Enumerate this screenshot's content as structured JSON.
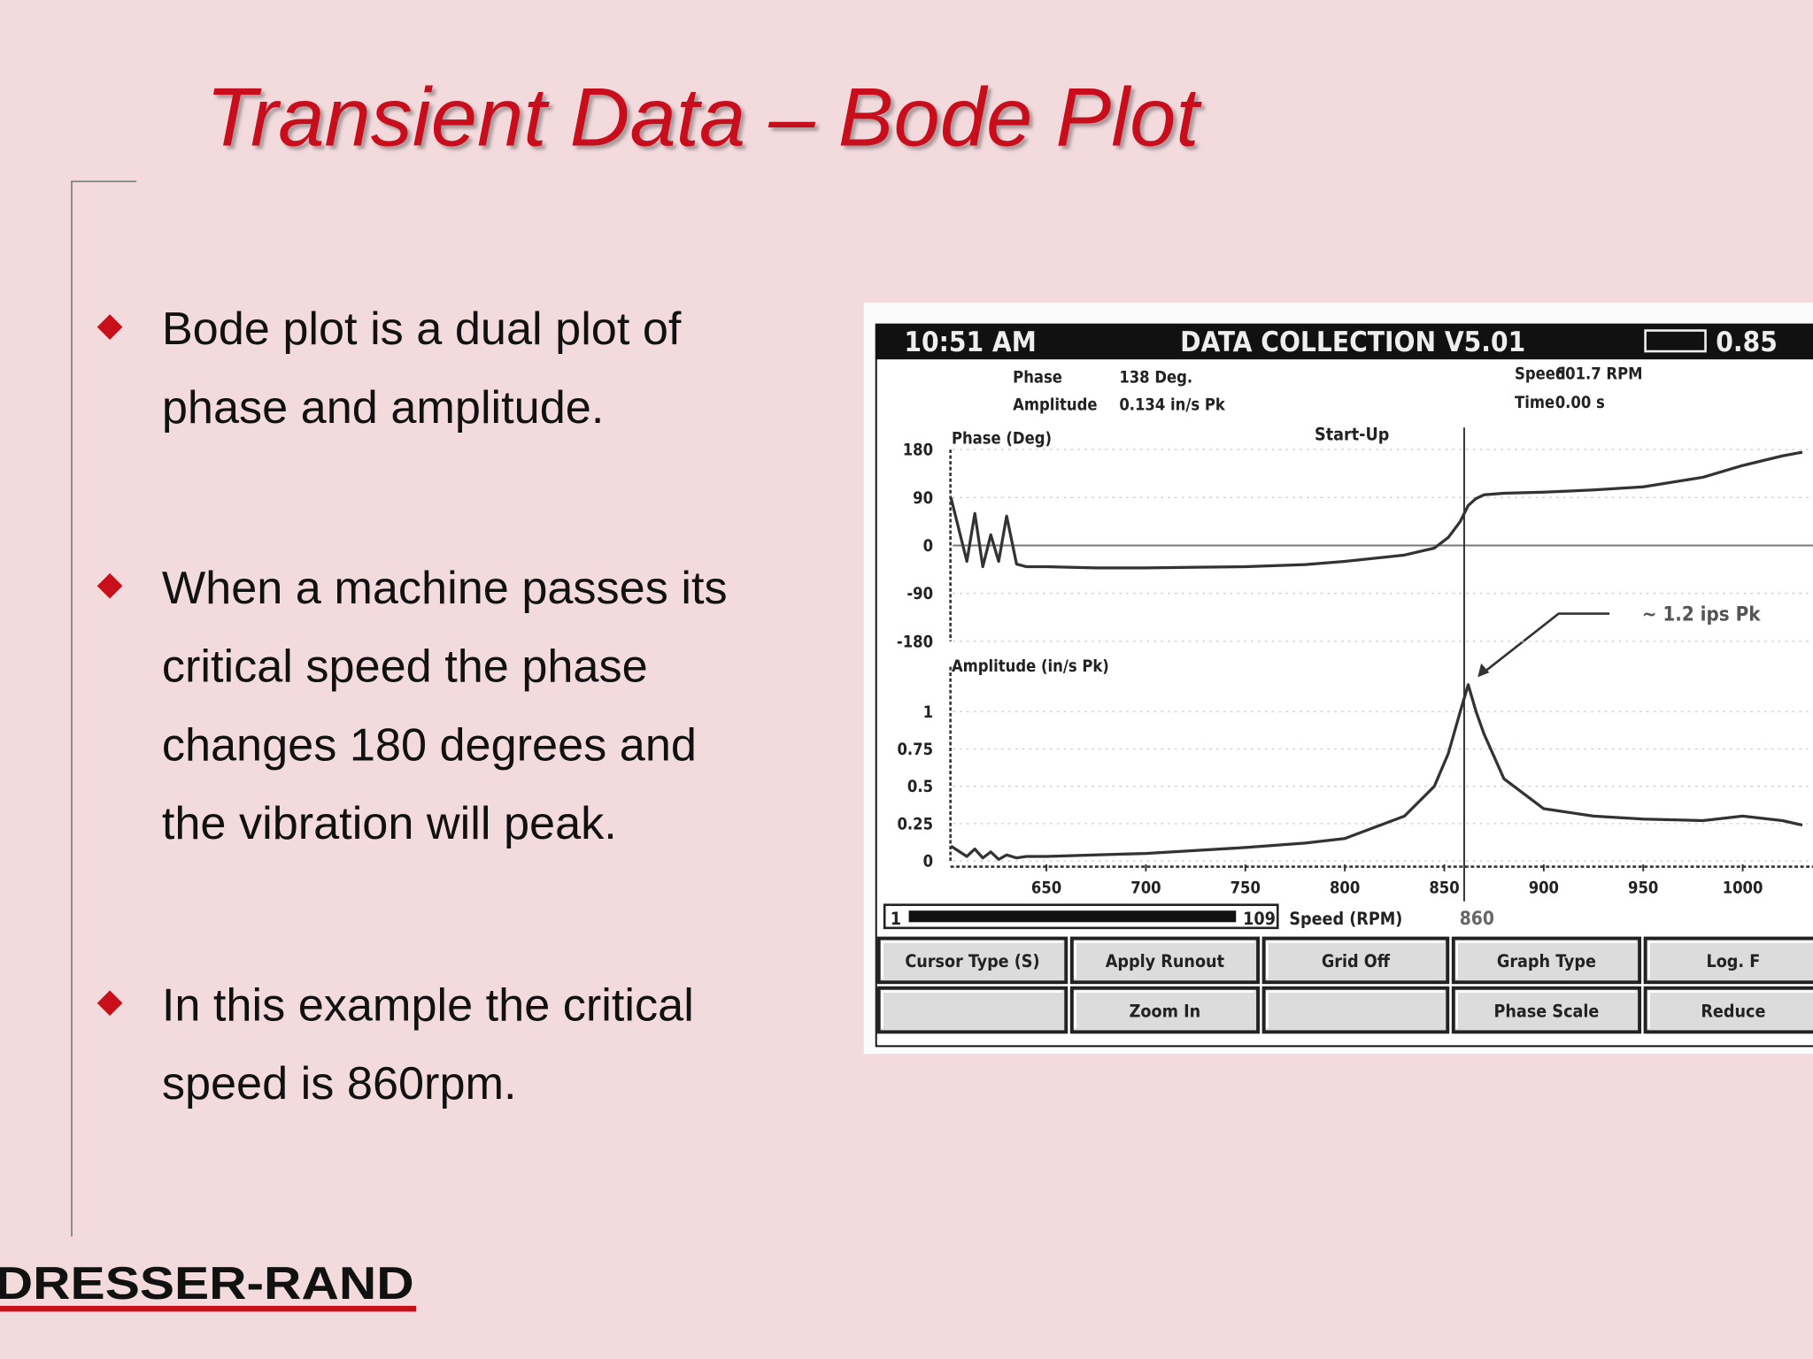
{
  "title": "Transient Data – Bode Plot",
  "bullets": [
    [
      "Bode plot is a dual plot of",
      "phase and amplitude."
    ],
    [
      "When a machine passes its",
      "critical speed the phase",
      "changes 180 degrees and",
      "the vibration will peak."
    ],
    [
      "In this example the critical",
      "speed is 860rpm."
    ]
  ],
  "logo": "DRESSER-RAND",
  "screen": {
    "time": "10:51 AM",
    "header": "DATA COLLECTION V5.01",
    "battery": "0.85",
    "readouts": [
      {
        "label": "Phase",
        "value": "138 Deg."
      },
      {
        "label": "Amplitude",
        "value": "0.134 in/s Pk"
      },
      {
        "label": "Speed",
        "value": "601.7 RPM"
      },
      {
        "label": "Time",
        "value": "0.00 s"
      }
    ],
    "mode": "Start-Up",
    "annotation": "~ 1.2 ips Pk",
    "slider_start": "1",
    "slider_end": "109",
    "plot": {
      "x_label": "Speed (RPM)",
      "xlim": [
        600,
        1040
      ],
      "xticks": [
        650,
        700,
        750,
        800,
        850,
        900,
        950,
        1000
      ],
      "cursor": 860,
      "x": [
        602,
        610,
        614,
        618,
        622,
        626,
        630,
        635,
        640,
        650,
        675,
        700,
        725,
        750,
        780,
        800,
        830,
        845,
        852,
        858,
        862,
        866,
        870,
        880,
        900,
        925,
        950,
        980,
        1000,
        1020,
        1030
      ],
      "phase": {
        "label": "Phase (Deg)",
        "ylim": [
          -180,
          180
        ],
        "yticks": [
          180,
          90,
          0,
          -90,
          -180
        ],
        "values": [
          90,
          -30,
          60,
          -40,
          20,
          -30,
          55,
          -35,
          -40,
          -40,
          -42,
          -42,
          -41,
          -40,
          -36,
          -30,
          -18,
          -5,
          15,
          45,
          75,
          88,
          95,
          98,
          100,
          104,
          110,
          128,
          150,
          168,
          175
        ]
      },
      "amplitude": {
        "label": "Amplitude (in/s Pk)",
        "ylim": [
          0,
          1.3
        ],
        "yticks": [
          1,
          0.75,
          0.5,
          0.25,
          0
        ],
        "values": [
          0.1,
          0.03,
          0.08,
          0.02,
          0.06,
          0.01,
          0.04,
          0.02,
          0.03,
          0.03,
          0.04,
          0.05,
          0.07,
          0.09,
          0.12,
          0.15,
          0.3,
          0.5,
          0.72,
          1.0,
          1.18,
          1.0,
          0.85,
          0.55,
          0.35,
          0.3,
          0.28,
          0.27,
          0.3,
          0.27,
          0.24
        ]
      }
    },
    "buttons": [
      [
        "Cursor Type (S)",
        "Apply Runout",
        "Grid Off",
        "Graph Type",
        "Log. F"
      ],
      [
        null,
        "Zoom In",
        null,
        "Phase Scale",
        "Reduce"
      ]
    ]
  }
}
